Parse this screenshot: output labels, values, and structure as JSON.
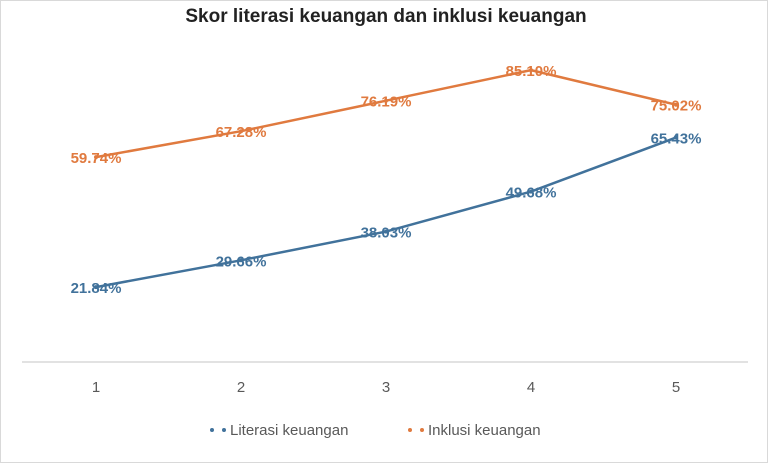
{
  "chart_data": {
    "type": "line",
    "title": "Skor literasi keuangan dan inklusi keuangan",
    "categories": [
      "1",
      "2",
      "3",
      "4",
      "5"
    ],
    "series": [
      {
        "name": "Literasi keuangan",
        "color": "#41729b",
        "values": [
          21.84,
          29.66,
          38.03,
          49.68,
          65.43
        ],
        "labels": [
          "21.84%",
          "29.66%",
          "38.03%",
          "49.68%",
          "65.43%"
        ]
      },
      {
        "name": "Inklusi keuangan",
        "color": "#e07a3f",
        "values": [
          59.74,
          67.28,
          76.19,
          85.1,
          75.02
        ],
        "labels": [
          "59.74%",
          "67.28%",
          "76.19%",
          "85.10%",
          "75.02%"
        ]
      }
    ],
    "xlabel": "",
    "ylabel": "",
    "ylim": [
      0,
      90
    ],
    "grid": false,
    "legend": "bottom",
    "axis_color": "#d9d9d9"
  }
}
